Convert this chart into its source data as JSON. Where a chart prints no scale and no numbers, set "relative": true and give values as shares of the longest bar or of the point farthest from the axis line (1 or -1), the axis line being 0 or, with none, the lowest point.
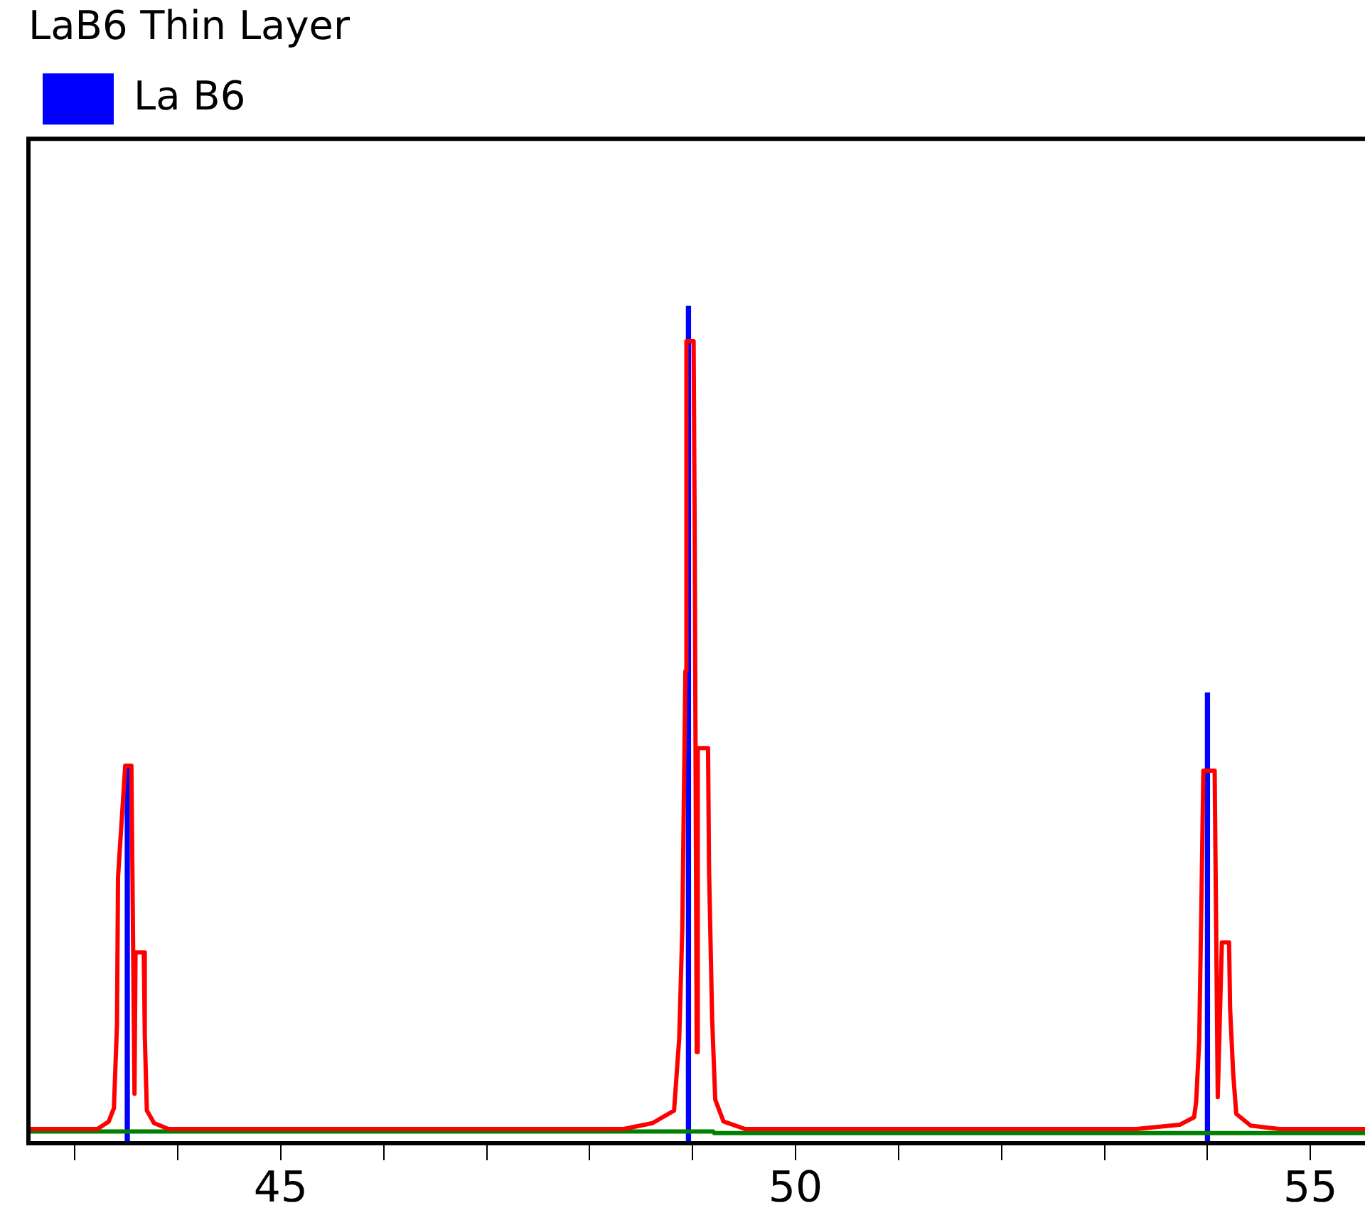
{
  "chart_data": {
    "type": "line",
    "legend_title": "LaB6 Thin Layer",
    "relative": true,
    "legend": "top left",
    "grid": false,
    "marker": "none",
    "line_style": "solid",
    "xlim": [
      42.55,
      55.53
    ],
    "xticks": [
      {
        "value": 43,
        "label": null
      },
      {
        "value": 44,
        "label": null
      },
      45,
      {
        "value": 46,
        "label": null
      },
      {
        "value": 47,
        "label": null
      },
      {
        "value": 48,
        "label": null
      },
      {
        "value": 49,
        "label": null
      },
      50,
      {
        "value": 51,
        "label": null
      },
      {
        "value": 52,
        "label": null
      },
      {
        "value": 53,
        "label": null
      },
      {
        "value": 54,
        "label": null
      },
      55
    ],
    "series": [
      {
        "color": "#ff0000",
        "x": [
          42.55,
          43.22,
          43.33,
          43.38,
          43.41,
          43.42,
          43.49,
          43.55,
          43.58,
          43.59,
          43.67,
          43.68,
          43.7,
          43.77,
          43.91,
          48.33,
          48.61,
          48.82,
          48.87,
          48.9,
          48.93,
          48.94,
          49.01,
          49.02,
          49.04,
          49.05,
          49.15,
          49.16,
          49.19,
          49.22,
          49.3,
          49.51,
          53.31,
          53.73,
          53.87,
          53.89,
          53.92,
          53.94,
          53.96,
          54.07,
          54.1,
          54.14,
          54.21,
          54.22,
          54.25,
          54.28,
          54.42,
          54.7,
          55.53
        ],
        "values": [
          0.017,
          0.017,
          0.026,
          0.042,
          0.142,
          0.318,
          0.451,
          0.451,
          0.059,
          0.228,
          0.228,
          0.129,
          0.039,
          0.024,
          0.017,
          0.017,
          0.024,
          0.039,
          0.125,
          0.256,
          0.564,
          0.958,
          0.958,
          0.741,
          0.109,
          0.472,
          0.472,
          0.325,
          0.148,
          0.052,
          0.026,
          0.017,
          0.017,
          0.022,
          0.031,
          0.049,
          0.122,
          0.276,
          0.445,
          0.445,
          0.055,
          0.24,
          0.24,
          0.161,
          0.083,
          0.035,
          0.021,
          0.017,
          0.017
        ]
      },
      {
        "color": "#008000",
        "x": [
          42.55,
          49.2,
          49.21,
          55.53
        ],
        "values": [
          0.014,
          0.014,
          0.012,
          0.012
        ]
      },
      {
        "type": "bar",
        "name": "La B6",
        "color": "#0000ff",
        "x": [
          43.51,
          48.96,
          54.0
        ],
        "values": [
          0.45,
          1,
          0.538
        ]
      }
    ]
  }
}
